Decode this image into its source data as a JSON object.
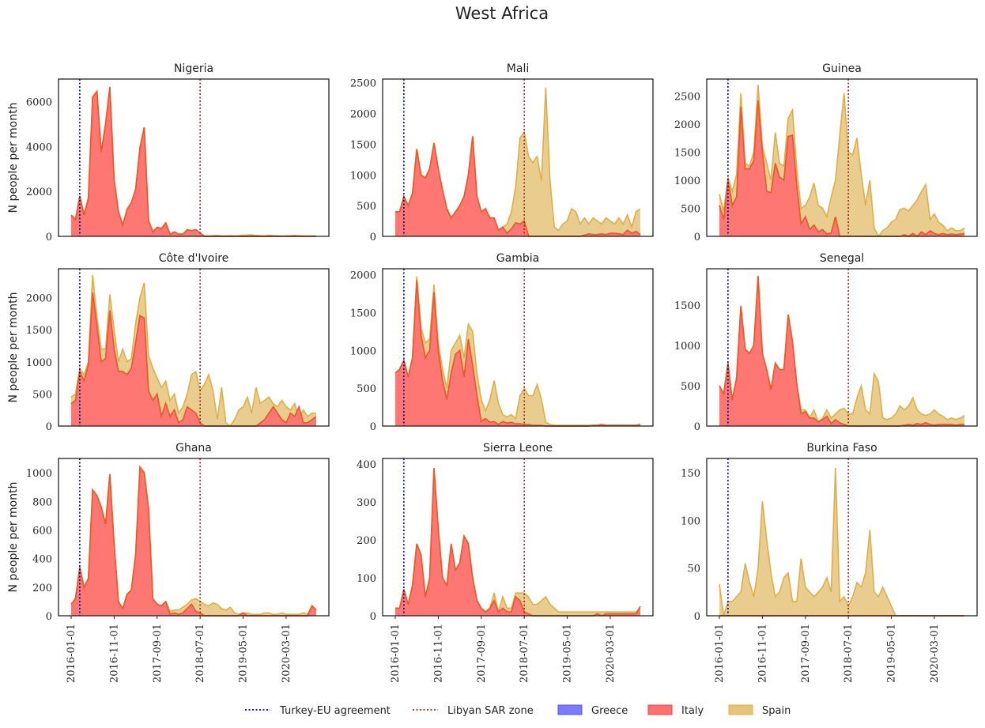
{
  "chart_data": {
    "type": "area",
    "title": "West Africa",
    "ylabel": "N people per month",
    "x_start": "2016-01",
    "n_months": 58,
    "x_ticks": [
      "2016-01-01",
      "2016-11-01",
      "2017-09-01",
      "2018-07-01",
      "2019-05-01",
      "2020-03-01"
    ],
    "vlines": [
      {
        "name": "Turkey-EU agreement",
        "date": "2016-03",
        "color": "#00008b"
      },
      {
        "name": "Libyan SAR zone",
        "date": "2018-07",
        "color": "#b22222"
      }
    ],
    "series_colors": {
      "Greece": "#7b7bff",
      "Italy": "#ff7070",
      "Spain": "#e5c47a"
    },
    "legend": [
      {
        "label": "Turkey-EU agreement",
        "kind": "dotted",
        "color": "#00008b"
      },
      {
        "label": "Libyan SAR zone",
        "kind": "dotted",
        "color": "#b22222"
      },
      {
        "label": "Greece",
        "kind": "patch",
        "color": "#7b7bff"
      },
      {
        "label": "Italy",
        "kind": "patch",
        "color": "#ff7070"
      },
      {
        "label": "Spain",
        "kind": "patch",
        "color": "#e5c47a"
      }
    ],
    "panels": [
      {
        "title": "Nigeria",
        "ylim": [
          0,
          7000
        ],
        "yticks": [
          0,
          2000,
          4000,
          6000
        ],
        "italy": [
          950,
          750,
          1800,
          950,
          1700,
          6200,
          6450,
          3750,
          5000,
          6650,
          2500,
          1100,
          500,
          1200,
          1500,
          2100,
          3950,
          4850,
          700,
          200,
          400,
          350,
          600,
          100,
          200,
          100,
          100,
          300,
          250,
          300,
          150,
          0,
          0,
          0,
          0,
          0,
          0,
          0,
          0,
          0,
          0,
          0,
          0,
          0,
          0,
          0,
          0,
          0,
          0,
          0,
          0,
          0,
          0,
          0,
          0,
          0,
          0,
          0
        ],
        "spain": [
          950,
          750,
          1800,
          950,
          1700,
          6200,
          6450,
          3750,
          5000,
          6650,
          2500,
          1100,
          500,
          1200,
          1500,
          2100,
          3950,
          4850,
          700,
          200,
          400,
          350,
          600,
          100,
          200,
          100,
          100,
          300,
          250,
          300,
          150,
          20,
          20,
          30,
          40,
          20,
          20,
          30,
          20,
          30,
          50,
          60,
          70,
          40,
          30,
          20,
          50,
          30,
          20,
          10,
          20,
          30,
          40,
          30,
          20,
          10,
          20,
          10
        ]
      },
      {
        "title": "Mali",
        "ylim": [
          0,
          2560
        ],
        "yticks": [
          0,
          500,
          1000,
          1500,
          2000,
          2500
        ],
        "italy": [
          400,
          400,
          650,
          500,
          700,
          1420,
          1000,
          950,
          1100,
          1520,
          1100,
          750,
          450,
          300,
          400,
          500,
          650,
          1000,
          1630,
          650,
          400,
          450,
          300,
          300,
          100,
          150,
          50,
          120,
          220,
          200,
          250,
          0,
          0,
          0,
          0,
          0,
          0,
          0,
          0,
          0,
          0,
          0,
          0,
          0,
          20,
          40,
          30,
          30,
          40,
          30,
          50,
          50,
          40,
          30,
          100,
          50,
          80,
          30
        ],
        "spain": [
          400,
          400,
          650,
          500,
          700,
          1420,
          1000,
          950,
          1100,
          1520,
          1100,
          750,
          450,
          300,
          400,
          500,
          650,
          1000,
          1630,
          650,
          400,
          450,
          300,
          300,
          100,
          150,
          200,
          400,
          800,
          1600,
          1700,
          1300,
          1200,
          1300,
          900,
          2420,
          900,
          150,
          100,
          200,
          250,
          450,
          400,
          200,
          300,
          200,
          300,
          250,
          200,
          300,
          250,
          200,
          300,
          200,
          350,
          150,
          400,
          450
        ]
      },
      {
        "title": "Guinea",
        "ylim": [
          0,
          2800
        ],
        "yticks": [
          0,
          500,
          1000,
          1500,
          2000,
          2500
        ],
        "italy": [
          550,
          300,
          1000,
          550,
          700,
          2300,
          1200,
          1200,
          1350,
          2420,
          1500,
          800,
          780,
          1300,
          1050,
          1000,
          1780,
          1800,
          900,
          220,
          350,
          120,
          200,
          80,
          120,
          40,
          60,
          350,
          0,
          0,
          0,
          0,
          0,
          0,
          0,
          0,
          0,
          0,
          0,
          0,
          0,
          0,
          0,
          30,
          0,
          50,
          0,
          80,
          30,
          100,
          50,
          30,
          50,
          30,
          40,
          30,
          40,
          50
        ],
        "spain": [
          750,
          450,
          1050,
          800,
          1100,
          2550,
          1300,
          1250,
          1500,
          2700,
          1600,
          1300,
          1000,
          1850,
          1300,
          1250,
          2100,
          2250,
          1200,
          500,
          550,
          700,
          950,
          550,
          500,
          350,
          700,
          1000,
          1800,
          2550,
          1500,
          1450,
          1750,
          1100,
          550,
          1000,
          150,
          0,
          100,
          150,
          250,
          300,
          480,
          500,
          450,
          550,
          650,
          800,
          920,
          300,
          400,
          250,
          200,
          100,
          150,
          100,
          100,
          150
        ]
      },
      {
        "title": "Côte d'Ivoire",
        "ylim": [
          0,
          2450
        ],
        "yticks": [
          0,
          500,
          1000,
          1500,
          2000
        ],
        "italy": [
          350,
          400,
          850,
          700,
          950,
          2080,
          1550,
          1000,
          1050,
          1800,
          1200,
          850,
          850,
          800,
          900,
          1300,
          1720,
          1680,
          550,
          400,
          500,
          150,
          350,
          150,
          250,
          50,
          100,
          300,
          250,
          200,
          50,
          0,
          0,
          0,
          0,
          0,
          0,
          0,
          0,
          0,
          0,
          0,
          0,
          0,
          50,
          100,
          200,
          300,
          200,
          100,
          50,
          200,
          150,
          300,
          50,
          50,
          100,
          150
        ],
        "spain": [
          450,
          500,
          900,
          800,
          1000,
          2350,
          1700,
          1200,
          1200,
          2050,
          1500,
          1000,
          1200,
          1000,
          1050,
          1600,
          2000,
          2230,
          1100,
          900,
          750,
          600,
          700,
          400,
          500,
          200,
          300,
          500,
          800,
          850,
          550,
          650,
          800,
          550,
          100,
          600,
          50,
          0,
          100,
          250,
          300,
          450,
          200,
          600,
          350,
          400,
          450,
          350,
          300,
          400,
          300,
          250,
          350,
          100,
          250,
          150,
          200,
          200
        ]
      },
      {
        "title": "Gambia",
        "ylim": [
          0,
          2080
        ],
        "yticks": [
          0,
          500,
          1000,
          1500,
          2000
        ],
        "italy": [
          700,
          750,
          870,
          650,
          900,
          1930,
          1200,
          900,
          1000,
          1770,
          1000,
          600,
          350,
          700,
          950,
          1000,
          650,
          1150,
          800,
          400,
          60,
          100,
          50,
          60,
          20,
          60,
          40,
          50,
          30,
          30,
          20,
          20,
          10,
          10,
          10,
          0,
          0,
          0,
          0,
          0,
          0,
          0,
          0,
          0,
          0,
          0,
          10,
          10,
          20,
          10,
          10,
          10,
          10,
          10,
          10,
          10,
          10,
          10
        ],
        "spain": [
          700,
          750,
          870,
          650,
          900,
          1980,
          1300,
          1100,
          1150,
          1870,
          1100,
          750,
          500,
          1000,
          1100,
          1200,
          900,
          1350,
          1250,
          700,
          350,
          200,
          350,
          600,
          300,
          150,
          120,
          150,
          100,
          400,
          500,
          400,
          400,
          550,
          350,
          50,
          20,
          10,
          10,
          10,
          10,
          10,
          10,
          10,
          10,
          10,
          10,
          10,
          20,
          10,
          10,
          10,
          10,
          10,
          10,
          10,
          10,
          30
        ]
      },
      {
        "title": "Senegal",
        "ylim": [
          0,
          1950
        ],
        "yticks": [
          0,
          500,
          1000,
          1500
        ],
        "italy": [
          500,
          400,
          780,
          320,
          600,
          1490,
          950,
          900,
          1000,
          1860,
          900,
          700,
          450,
          780,
          700,
          700,
          1380,
          1050,
          520,
          150,
          180,
          100,
          100,
          50,
          80,
          120,
          30,
          80,
          40,
          20,
          0,
          0,
          0,
          0,
          0,
          0,
          0,
          0,
          0,
          0,
          0,
          0,
          0,
          10,
          20,
          10,
          30,
          20,
          40,
          20,
          10,
          20,
          20,
          20,
          20,
          10,
          20,
          20
        ],
        "spain": [
          500,
          400,
          780,
          320,
          600,
          1490,
          950,
          900,
          1000,
          1860,
          900,
          700,
          450,
          780,
          700,
          700,
          1380,
          1050,
          520,
          200,
          200,
          100,
          200,
          50,
          100,
          200,
          100,
          150,
          200,
          220,
          150,
          150,
          350,
          500,
          200,
          150,
          650,
          550,
          100,
          80,
          100,
          150,
          250,
          200,
          250,
          350,
          200,
          150,
          130,
          150,
          200,
          150,
          120,
          80,
          100,
          80,
          100,
          130
        ]
      },
      {
        "title": "Ghana",
        "ylim": [
          0,
          1100
        ],
        "yticks": [
          0,
          200,
          400,
          600,
          800,
          1000
        ],
        "italy": [
          80,
          120,
          340,
          200,
          260,
          880,
          840,
          760,
          640,
          990,
          500,
          100,
          50,
          150,
          180,
          430,
          1040,
          1000,
          750,
          120,
          80,
          70,
          100,
          10,
          20,
          10,
          20,
          50,
          80,
          30,
          20,
          0,
          0,
          0,
          0,
          0,
          0,
          0,
          0,
          0,
          20,
          0,
          0,
          0,
          0,
          0,
          0,
          0,
          0,
          0,
          0,
          0,
          0,
          0,
          0,
          0,
          70,
          40
        ],
        "spain": [
          80,
          120,
          340,
          200,
          260,
          880,
          840,
          760,
          640,
          990,
          500,
          100,
          50,
          150,
          180,
          430,
          1040,
          1000,
          750,
          120,
          80,
          70,
          100,
          30,
          40,
          40,
          60,
          80,
          110,
          120,
          100,
          80,
          70,
          90,
          80,
          50,
          40,
          60,
          20,
          10,
          20,
          20,
          10,
          10,
          10,
          20,
          20,
          10,
          10,
          20,
          10,
          10,
          10,
          10,
          20,
          10,
          70,
          40
        ]
      },
      {
        "title": "Sierra Leone",
        "ylim": [
          0,
          415
        ],
        "yticks": [
          0,
          100,
          200,
          300,
          400
        ],
        "italy": [
          20,
          20,
          70,
          30,
          80,
          190,
          160,
          50,
          100,
          390,
          230,
          100,
          80,
          190,
          120,
          140,
          210,
          190,
          100,
          40,
          20,
          10,
          20,
          40,
          10,
          20,
          10,
          10,
          50,
          40,
          10,
          5,
          0,
          0,
          0,
          0,
          0,
          0,
          0,
          0,
          0,
          0,
          0,
          0,
          0,
          0,
          0,
          5,
          0,
          5,
          5,
          5,
          5,
          5,
          5,
          5,
          5,
          25
        ],
        "spain": [
          20,
          20,
          70,
          30,
          80,
          190,
          160,
          50,
          100,
          390,
          230,
          100,
          80,
          190,
          120,
          140,
          210,
          190,
          100,
          40,
          20,
          10,
          20,
          60,
          10,
          50,
          20,
          20,
          60,
          60,
          60,
          50,
          30,
          30,
          40,
          50,
          30,
          20,
          10,
          10,
          10,
          10,
          10,
          10,
          10,
          10,
          10,
          10,
          10,
          10,
          10,
          10,
          10,
          10,
          10,
          10,
          10,
          20
        ]
      },
      {
        "title": "Burkina Faso",
        "ylim": [
          0,
          165
        ],
        "yticks": [
          0,
          50,
          100,
          150
        ],
        "italy": [
          0,
          0,
          0,
          0,
          0,
          0,
          0,
          0,
          0,
          0,
          0,
          0,
          0,
          0,
          0,
          0,
          0,
          0,
          0,
          0,
          0,
          0,
          0,
          0,
          0,
          0,
          0,
          0,
          0,
          0,
          0,
          0,
          0,
          0,
          0,
          0,
          0,
          0,
          0,
          0,
          0,
          0,
          0,
          0,
          0,
          0,
          0,
          0,
          0,
          0,
          0,
          0,
          0,
          0,
          0,
          0,
          0,
          0
        ],
        "spain": [
          33,
          0,
          15,
          15,
          20,
          25,
          55,
          35,
          20,
          50,
          120,
          80,
          45,
          20,
          25,
          40,
          45,
          15,
          15,
          60,
          30,
          25,
          20,
          25,
          30,
          40,
          25,
          155,
          15,
          20,
          10,
          20,
          35,
          30,
          45,
          90,
          25,
          20,
          30,
          20,
          10,
          0,
          0,
          0,
          0,
          0,
          0,
          0,
          0,
          0,
          0,
          0,
          0,
          0,
          0,
          0,
          0,
          0
        ]
      }
    ]
  }
}
